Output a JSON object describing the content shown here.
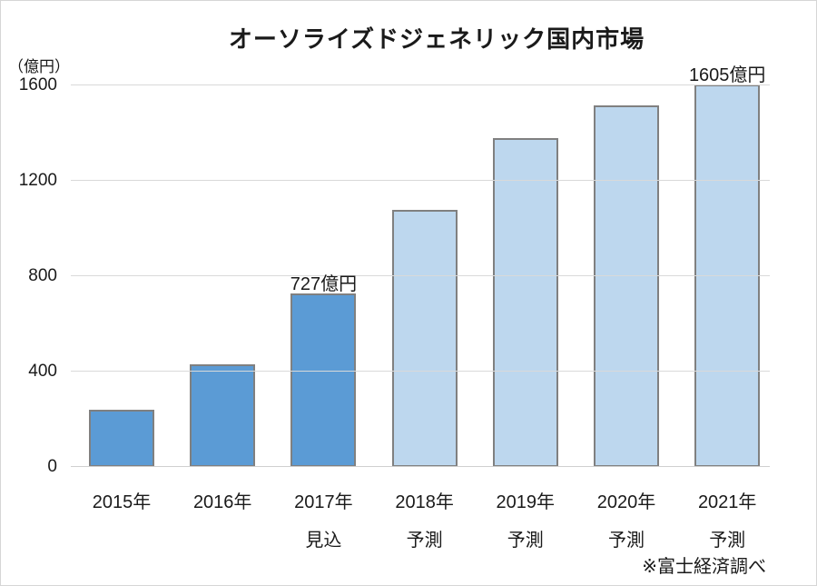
{
  "chart": {
    "title": "オーソライズドジェネリック国内市場",
    "y_unit": "（億円）",
    "source": "※富士経済調べ"
  },
  "chart_data": {
    "type": "bar",
    "title": "オーソライズドジェネリック国内市場",
    "y_unit": "（億円）",
    "source": "※富士経済調べ",
    "categories": [
      "2015年",
      "2016年",
      "2017年",
      "2018年",
      "2019年",
      "2020年",
      "2021年"
    ],
    "sublabels": [
      "",
      "",
      "見込",
      "予測",
      "予測",
      "予測",
      "予測"
    ],
    "values": [
      240,
      430,
      727,
      1080,
      1380,
      1515,
      1605
    ],
    "bar_styles": [
      "actual",
      "actual",
      "actual",
      "forecast",
      "forecast",
      "forecast",
      "forecast"
    ],
    "data_labels": [
      {
        "index": 2,
        "text": "727億円"
      },
      {
        "index": 6,
        "text": "1605億円"
      }
    ],
    "yticks": [
      0,
      400,
      800,
      1200,
      1600
    ],
    "ylim": [
      0,
      1600
    ],
    "grid": true,
    "legend": "none",
    "colors": {
      "actual_fill": "#5B9BD5",
      "forecast_fill": "#BDD7EE",
      "bar_border": "#808080",
      "gridline": "#D9D9D9",
      "axis_line": "#D0D0D0",
      "text": "#1a1a1a"
    }
  }
}
